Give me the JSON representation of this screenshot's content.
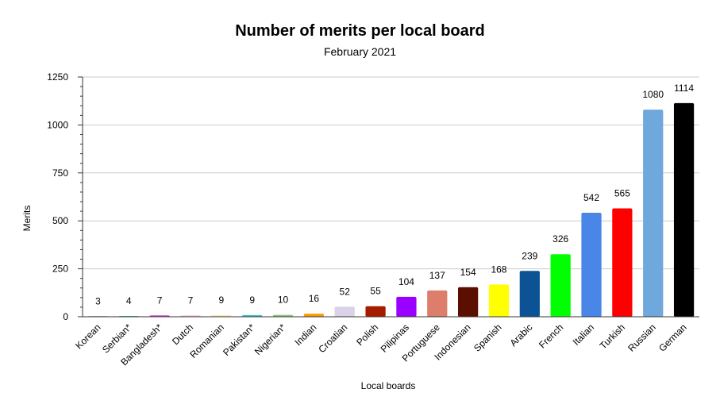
{
  "chart_data": {
    "type": "bar",
    "title": "Number of merits per local board",
    "subtitle": "February 2021",
    "xlabel": "Local boards",
    "ylabel": "Merits",
    "ylim": [
      0,
      1250
    ],
    "yticks": [
      0,
      250,
      500,
      750,
      1000,
      1250
    ],
    "grid": true,
    "categories": [
      "Korean",
      "Serbian*",
      "Bangladesh*",
      "Dutch",
      "Romanian",
      "Pakistan*",
      "Nigerian*",
      "Indian",
      "Croatian",
      "Polish",
      "Pilipinas",
      "Portuguese",
      "Indonesian",
      "Spanish",
      "Arabic",
      "French",
      "Italian",
      "Turkish",
      "Russian",
      "German"
    ],
    "values": [
      3,
      4,
      7,
      7,
      9,
      9,
      10,
      16,
      52,
      55,
      104,
      137,
      154,
      168,
      239,
      326,
      542,
      565,
      1080,
      1114
    ],
    "colors": [
      "#4a9ad4",
      "#46bdc6",
      "#d43fd4",
      "#f4c7c3",
      "#fce8b2",
      "#46bdc6",
      "#93c47d",
      "#ff9900",
      "#d9d2e9",
      "#a61c00",
      "#9900ff",
      "#dd7e6b",
      "#5b0f00",
      "#ffff00",
      "#0b5394",
      "#00ff00",
      "#4a86e8",
      "#ff0000",
      "#6fa8dc",
      "#000000"
    ]
  }
}
